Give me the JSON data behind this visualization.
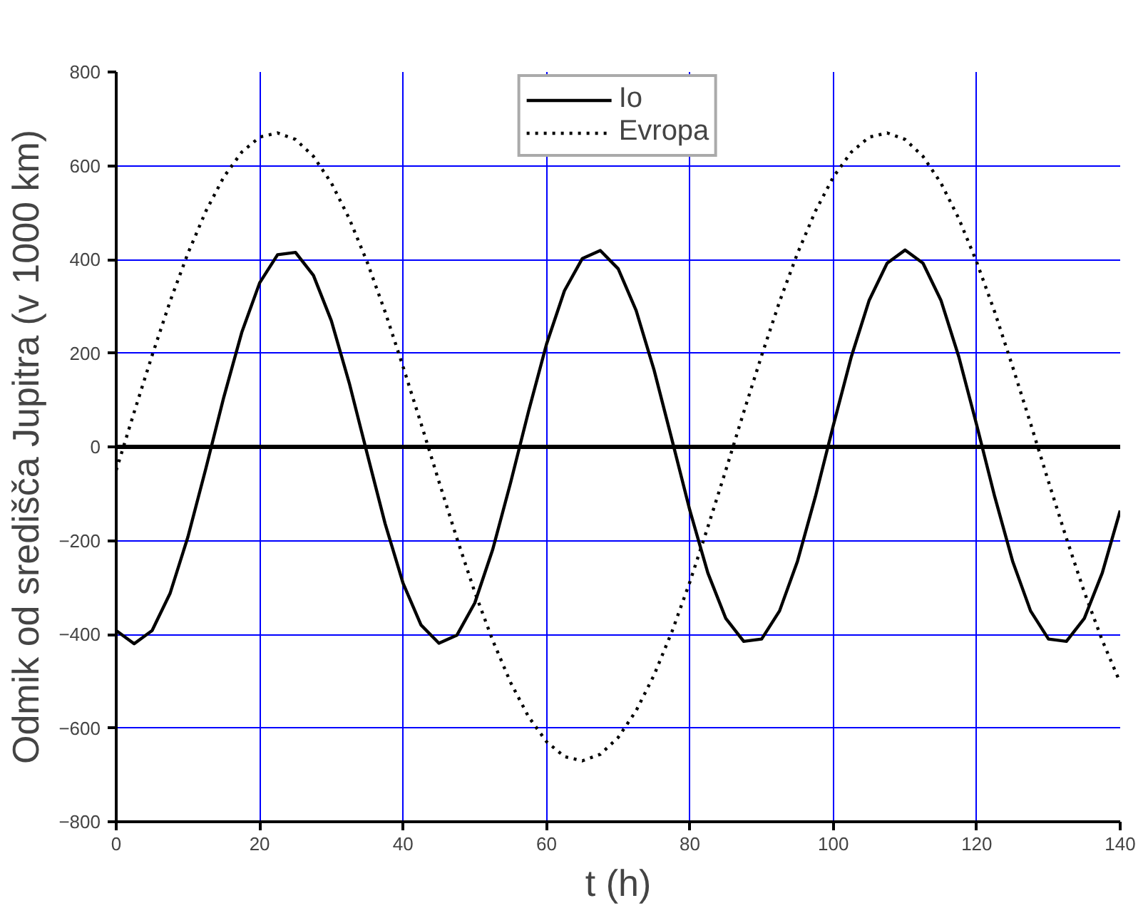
{
  "chart_data": {
    "type": "line",
    "xlabel": "t (h)",
    "ylabel": "Odmik od središča Jupitra (v 1000 km)",
    "x": [
      0,
      2.5,
      5,
      7.5,
      10,
      12.5,
      15,
      17.5,
      20,
      22.5,
      25,
      27.5,
      30,
      32.5,
      35,
      37.5,
      40,
      42.5,
      45,
      47.5,
      50,
      52.5,
      55,
      57.5,
      60,
      62.5,
      65,
      67.5,
      70,
      72.5,
      75,
      77.5,
      80,
      82.5,
      85,
      87.5,
      90,
      92.5,
      95,
      97.5,
      100,
      102.5,
      105,
      107.5,
      110,
      112.5,
      115,
      117.5,
      120,
      122.5,
      125,
      127.5,
      130,
      132.5,
      135,
      137.5,
      140
    ],
    "series": [
      {
        "name": "Io",
        "color": "#000000",
        "line_style": "solid",
        "values": [
          -392,
          -420,
          -392,
          -313,
          -192,
          -46,
          106,
          244,
          350,
          410,
          415,
          366,
          269,
          136,
          -15,
          -164,
          -291,
          -380,
          -419,
          -402,
          -333,
          -219,
          -76,
          76,
          219,
          333,
          402,
          419,
          380,
          291,
          164,
          15,
          -136,
          -269,
          -366,
          -415,
          -410,
          -350,
          -244,
          -106,
          46,
          192,
          313,
          392,
          420,
          392,
          313,
          192,
          46,
          -106,
          -244,
          -350,
          -410,
          -415,
          -366,
          -269,
          -136
        ]
      },
      {
        "name": "Evropa",
        "color": "#000000",
        "line_style": "dotted",
        "values": [
          -50,
          74,
          195,
          310,
          413,
          503,
          576,
          629,
          661,
          670,
          656,
          620,
          563,
          487,
          394,
          288,
          171,
          50,
          -74,
          -195,
          -310,
          -413,
          -503,
          -576,
          -629,
          -661,
          -670,
          -656,
          -620,
          -563,
          -487,
          -394,
          -288,
          -171,
          -50,
          74,
          195,
          310,
          413,
          503,
          576,
          629,
          661,
          670,
          656,
          620,
          563,
          487,
          394,
          288,
          171,
          50,
          -74,
          -195,
          -310,
          -413,
          -503
        ]
      }
    ],
    "xlim": [
      0,
      140
    ],
    "xticks": [
      0,
      20,
      40,
      60,
      80,
      100,
      120,
      140
    ],
    "ylim": [
      -800,
      800
    ],
    "yticks": [
      -800,
      -600,
      -400,
      -200,
      0,
      200,
      400,
      600,
      800
    ],
    "ref_lines": [
      {
        "axis": "y",
        "value": 0,
        "color": "#000000"
      }
    ],
    "grid": true,
    "legend": "top",
    "marker": "none"
  }
}
